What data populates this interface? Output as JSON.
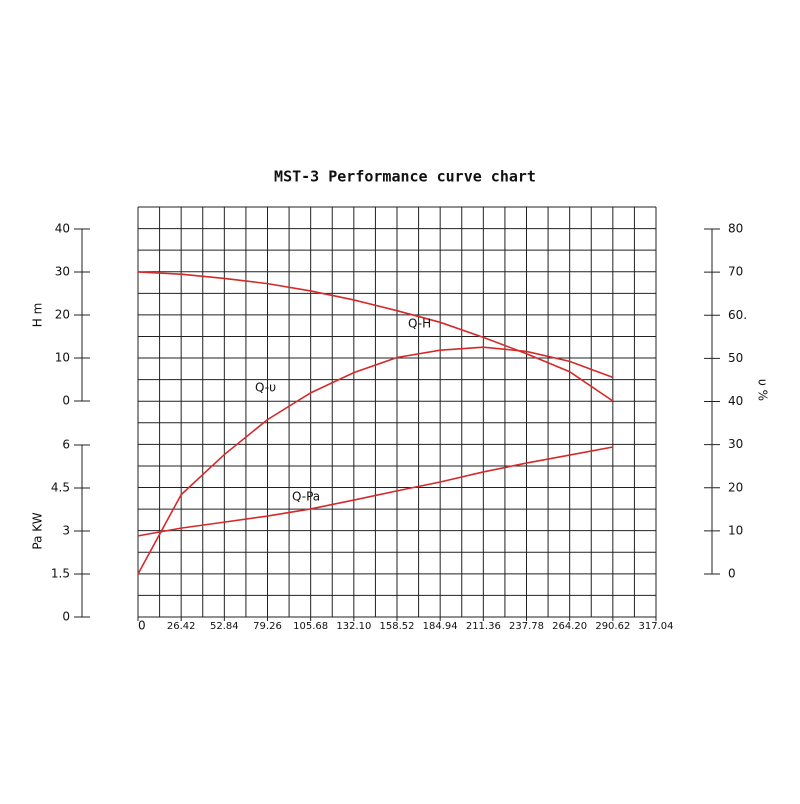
{
  "chart_data": {
    "type": "line",
    "title": "MST-3 Performance curve chart",
    "x": [
      0,
      26.42,
      52.84,
      79.26,
      105.68,
      132.1,
      158.52,
      184.94,
      211.36,
      237.78,
      264.2,
      290.62
    ],
    "xlim": [
      0,
      317.04
    ],
    "xticks": [
      0,
      26.42,
      52.84,
      79.26,
      105.68,
      {
        "value": 132.1,
        "label": "132.10"
      },
      158.52,
      184.94,
      211.36,
      237.78,
      {
        "value": 264.2,
        "label": "264.20"
      },
      290.62,
      317.04
    ],
    "y_label": "H m",
    "ylim": [
      0,
      40
    ],
    "yticks": [
      0,
      10,
      20,
      30,
      40
    ],
    "y2_label": "υ %",
    "y2lim": [
      0,
      80
    ],
    "y2ticks": [
      0,
      10,
      20,
      30,
      40,
      50,
      {
        "value": 60,
        "label": "60."
      },
      70,
      80
    ],
    "y3_label": "Pa KW",
    "y3lim": [
      0,
      6
    ],
    "y3ticks": [
      0,
      1.5,
      3,
      4.5,
      6
    ],
    "grid": true,
    "series": [
      {
        "name": "Q-H",
        "color": "#d42a2a",
        "axis": "y",
        "values": [
          30,
          29.5,
          28.5,
          27.3,
          25.6,
          23.5,
          21,
          18.3,
          14.8,
          11,
          6.8,
          0
        ]
      },
      {
        "name": "Q-υ",
        "color": "#d42a2a",
        "axis": "y2",
        "values": [
          0,
          18.4,
          27.7,
          35.8,
          42,
          46.7,
          50.2,
          51.9,
          52.6,
          51.6,
          49.3,
          45.6
        ]
      },
      {
        "name": "Q-Pa",
        "color": "#d42a2a",
        "axis": "y3",
        "values": [
          2.83,
          3.1,
          3.31,
          3.52,
          3.77,
          4.08,
          4.4,
          4.71,
          5.06,
          5.37,
          5.65,
          5.93
        ]
      }
    ]
  }
}
